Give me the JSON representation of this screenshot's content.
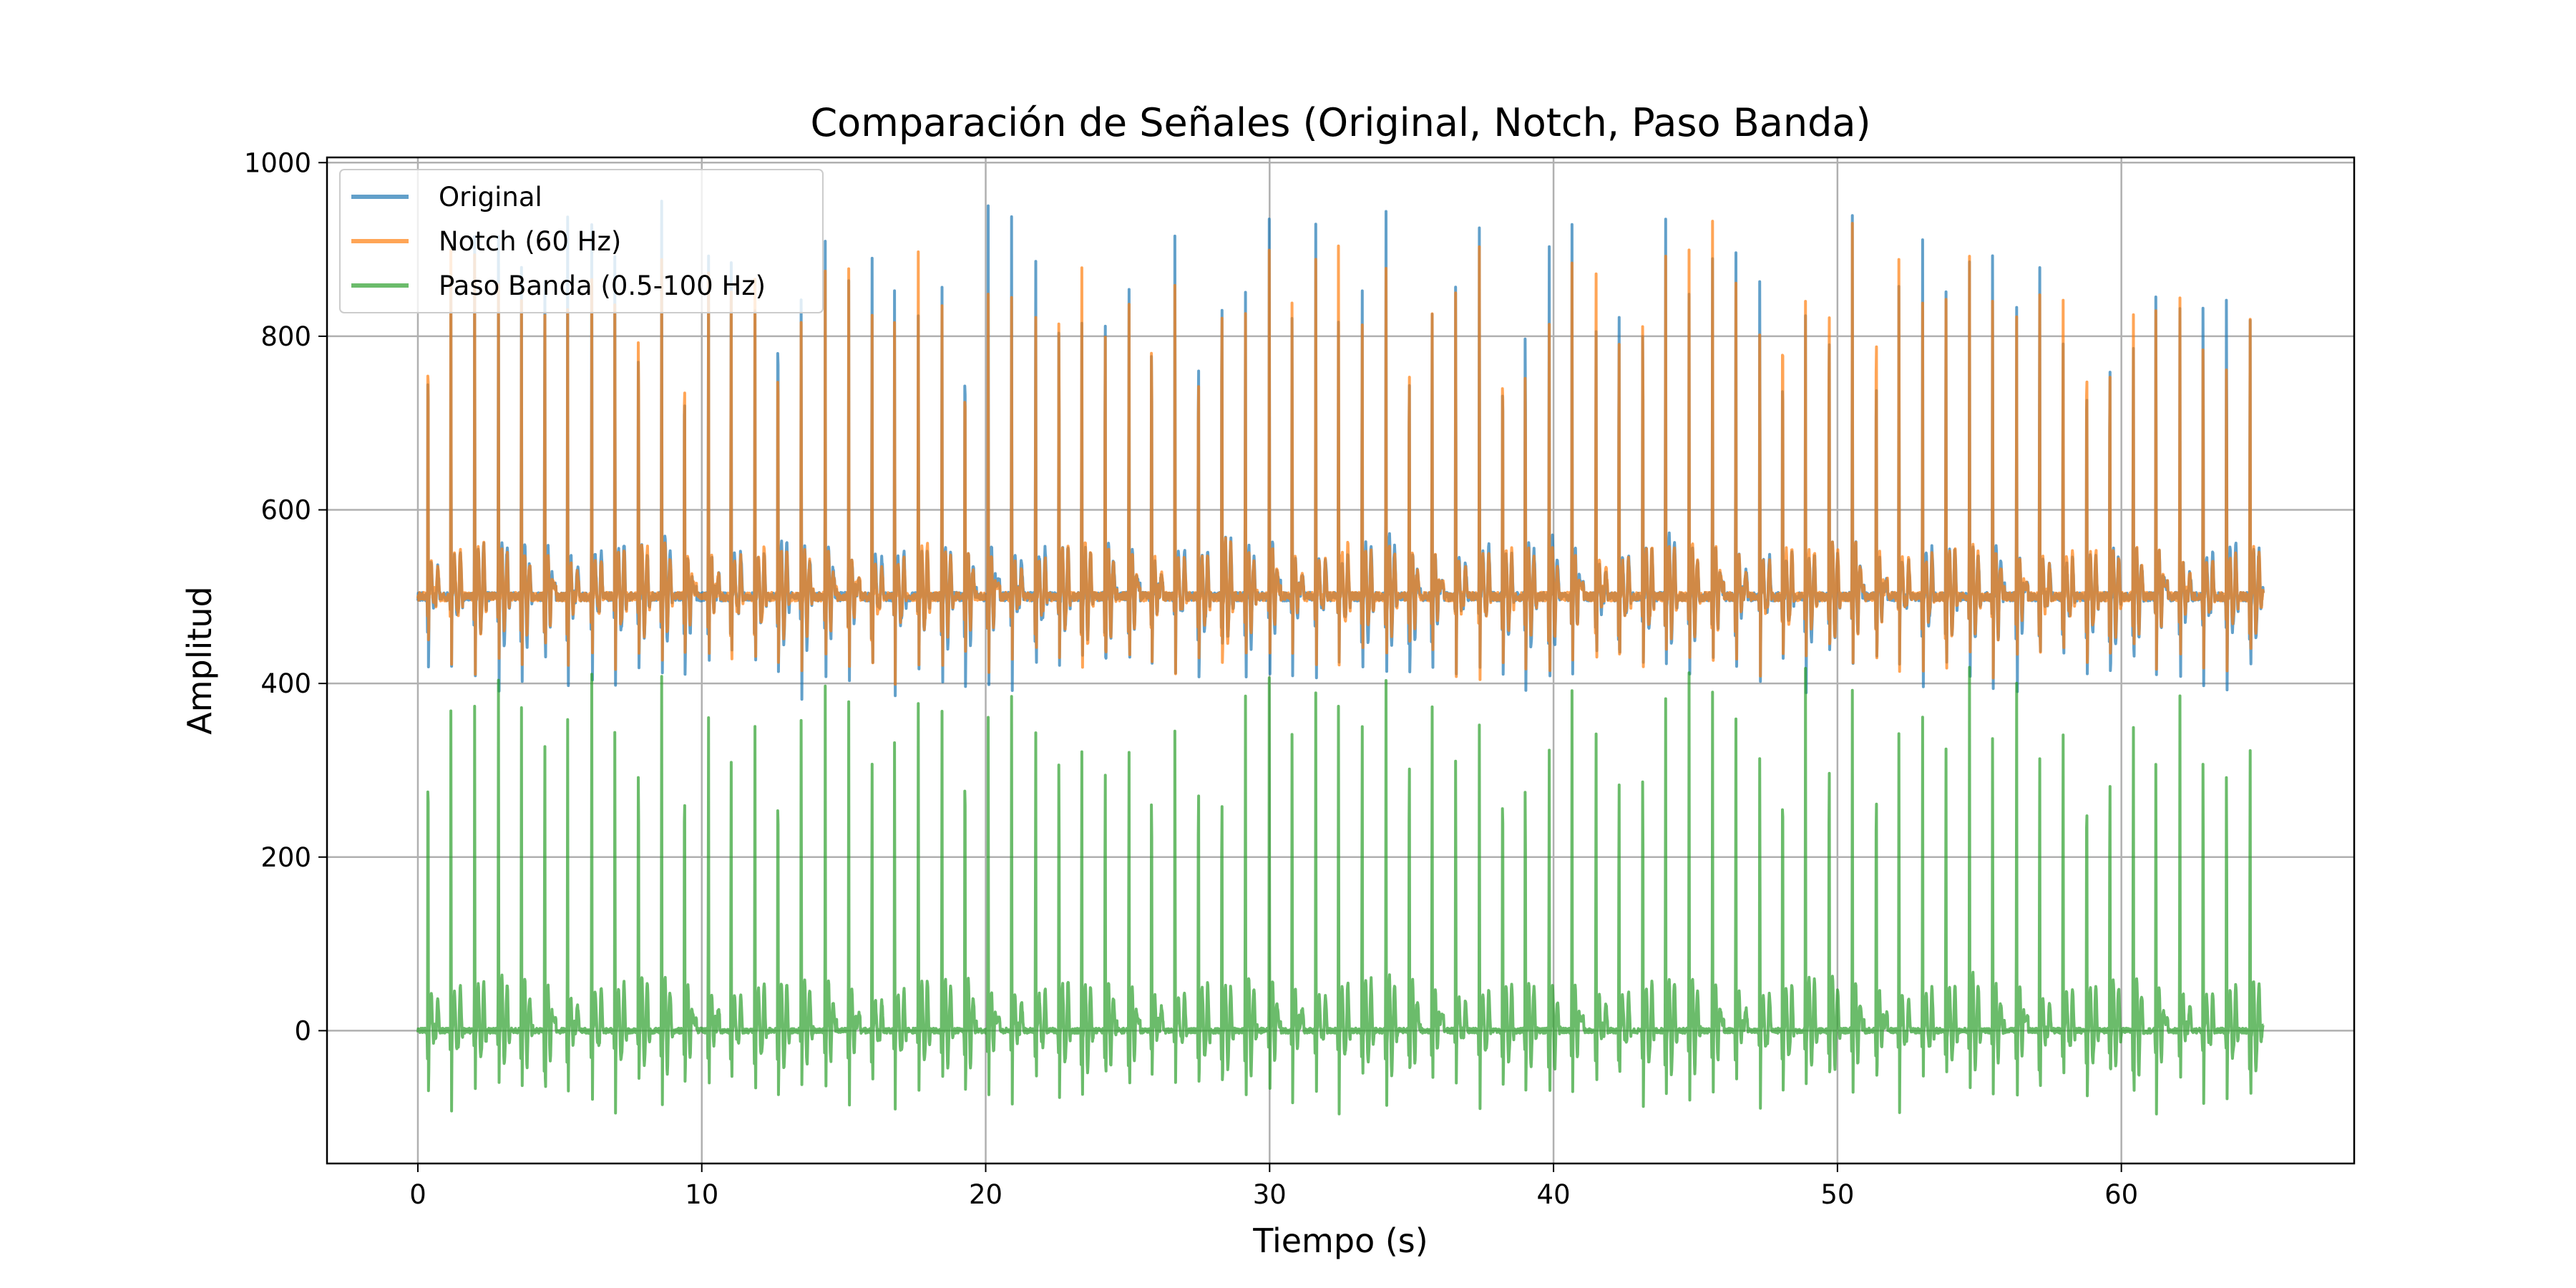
{
  "chart_data": {
    "type": "line",
    "title": "Comparación de Señales (Original, Notch, Paso Banda)",
    "xlabel": "Tiempo (s)",
    "ylabel": "Amplitud",
    "xlim": [
      -3.2,
      68.2
    ],
    "ylim": [
      -153,
      1006
    ],
    "xticks": [
      0,
      10,
      20,
      30,
      40,
      50,
      60
    ],
    "yticks": [
      0,
      200,
      400,
      600,
      800,
      1000
    ],
    "grid": true,
    "legend_position": "upper-left",
    "signal": {
      "duration_s": 65,
      "beats_approx": 79
    },
    "series": [
      {
        "name": "Original",
        "color": "#1f77b4",
        "baseline": 500,
        "peak_range": [
          830,
          960
        ],
        "trough_range": [
          380,
          420
        ]
      },
      {
        "name": "Notch (60 Hz)",
        "color": "#ff7f0e",
        "baseline": 500,
        "peak_range": [
          830,
          940
        ],
        "trough_range": [
          395,
          430
        ]
      },
      {
        "name": "Paso Banda (0.5-100 Hz)",
        "color": "#2ca02c",
        "baseline": 0,
        "peak_range": [
          350,
          420
        ],
        "trough_range": [
          -100,
          -60
        ]
      }
    ]
  }
}
